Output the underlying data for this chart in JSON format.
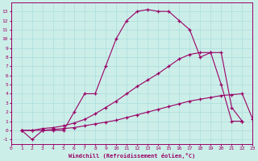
{
  "xlabel": "Windchill (Refroidissement éolien,°C)",
  "background_color": "#cceee8",
  "line_color": "#990066",
  "xlim": [
    0,
    23
  ],
  "ylim": [
    -1.5,
    14
  ],
  "yticks": [
    -1,
    0,
    1,
    2,
    3,
    4,
    5,
    6,
    7,
    8,
    9,
    10,
    11,
    12,
    13
  ],
  "xticks": [
    0,
    1,
    2,
    3,
    4,
    5,
    6,
    7,
    8,
    9,
    10,
    11,
    12,
    13,
    14,
    15,
    16,
    17,
    18,
    19,
    20,
    21,
    22,
    23
  ],
  "line1_x": [
    1,
    2,
    3,
    4,
    5,
    6,
    7,
    8,
    9,
    10,
    11,
    12,
    13,
    14,
    15,
    16,
    17,
    18,
    19,
    20,
    21,
    22
  ],
  "line1_y": [
    0,
    -1,
    0,
    0,
    0,
    2,
    4,
    4,
    7,
    10,
    12,
    13,
    13.2,
    13,
    13,
    12,
    11,
    8,
    8.5,
    5,
    1,
    1
  ],
  "line2_x": [
    1,
    2,
    3,
    4,
    5,
    6,
    7,
    8,
    9,
    10,
    11,
    12,
    13,
    14,
    15,
    16,
    17,
    18,
    19,
    20,
    21,
    22
  ],
  "line2_y": [
    0,
    0,
    0.2,
    0.3,
    0.5,
    0.8,
    1.2,
    1.8,
    2.5,
    3.2,
    4.0,
    4.8,
    5.5,
    6.2,
    7.0,
    7.8,
    8.3,
    8.5,
    8.5,
    8.5,
    2.5,
    1
  ],
  "line3_x": [
    1,
    2,
    3,
    4,
    5,
    6,
    7,
    8,
    9,
    10,
    11,
    12,
    13,
    14,
    15,
    16,
    17,
    18,
    19,
    20,
    21,
    22,
    23
  ],
  "line3_y": [
    0,
    0,
    0,
    0.1,
    0.2,
    0.3,
    0.5,
    0.7,
    0.9,
    1.1,
    1.4,
    1.7,
    2.0,
    2.3,
    2.6,
    2.9,
    3.2,
    3.4,
    3.6,
    3.8,
    3.9,
    4.0,
    1.2
  ],
  "grid_color": "#aadddd",
  "font_family": "monospace"
}
